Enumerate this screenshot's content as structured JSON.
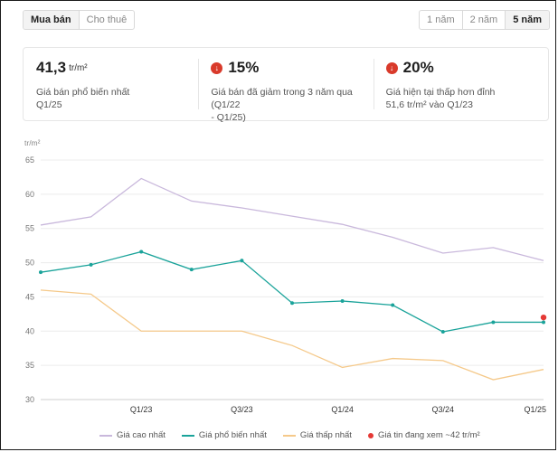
{
  "tabs_left": [
    {
      "label": "Mua bán",
      "active": true
    },
    {
      "label": "Cho thuê",
      "active": false
    }
  ],
  "tabs_right": [
    {
      "label": "1 năm",
      "active": false
    },
    {
      "label": "2 năm",
      "active": false
    },
    {
      "label": "5 năm",
      "active": true
    }
  ],
  "stats": [
    {
      "value": "41,3",
      "unit": "tr/m²",
      "desc1": "Giá bán phổ biến nhất",
      "desc2": "Q1/25",
      "icon": ""
    },
    {
      "value": "15%",
      "unit": "",
      "desc1": "Giá bán đã giảm trong 3 năm qua (Q1/22",
      "desc2": "- Q1/25)",
      "icon": "arrow-down-icon"
    },
    {
      "value": "20%",
      "unit": "",
      "desc1": "Giá hiện tại thấp hơn đỉnh",
      "desc2": "51,6 tr/m² vào Q1/23",
      "icon": "arrow-down-icon"
    }
  ],
  "colors": {
    "high": "#c9b8dc",
    "common": "#1aa39a",
    "low": "#f5c98a",
    "current": "#e53935",
    "stat_icon": "#d93a2b"
  },
  "chart_data": {
    "type": "line",
    "ylabel": "tr/m²",
    "ylim": [
      30,
      65
    ],
    "yticks": [
      30,
      35,
      40,
      45,
      50,
      55,
      60,
      65
    ],
    "x_points": 11,
    "xtick_labels": [
      {
        "index": 2,
        "label": "Q1/23"
      },
      {
        "index": 4,
        "label": "Q3/23"
      },
      {
        "index": 6,
        "label": "Q1/24"
      },
      {
        "index": 8,
        "label": "Q3/24"
      },
      {
        "index": 10,
        "label": "Q1/25"
      }
    ],
    "series": [
      {
        "key": "high",
        "name": "Giá cao nhất",
        "values": [
          55.5,
          56.7,
          62.3,
          59.0,
          58.0,
          56.8,
          55.6,
          53.7,
          51.4,
          52.2,
          50.3
        ],
        "markers": false
      },
      {
        "key": "common",
        "name": "Giá phổ biến nhất",
        "values": [
          48.6,
          49.7,
          51.6,
          49.0,
          50.3,
          44.1,
          44.4,
          43.8,
          39.9,
          41.3,
          41.3
        ],
        "markers": true
      },
      {
        "key": "low",
        "name": "Giá thấp nhất",
        "values": [
          46.0,
          45.4,
          40.0,
          40.0,
          40.0,
          37.9,
          34.7,
          36.0,
          35.7,
          32.9,
          34.4
        ],
        "markers": false
      }
    ],
    "current": {
      "name": "Giá tin đang xem ~42 tr/m²",
      "index": 10,
      "value": 42.0
    }
  }
}
